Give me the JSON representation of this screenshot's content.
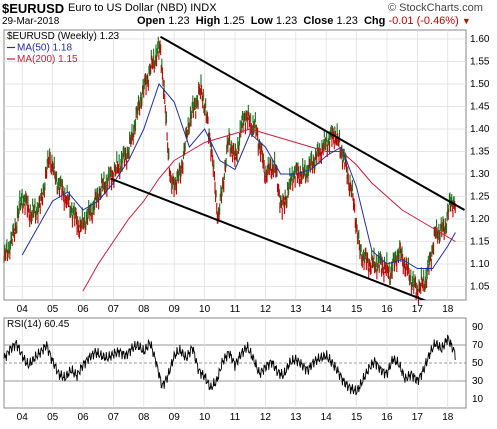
{
  "header": {
    "symbol": "$EURUSD",
    "description": "Euro to US Dollar (NBD) INDX",
    "brand": "© StockCharts.com",
    "date": "29-Mar-2018",
    "open_label": "Open",
    "open": "1.23",
    "high_label": "High",
    "high": "1.25",
    "low_label": "Low",
    "low": "1.23",
    "close_label": "Close",
    "close": "1.23",
    "chg_label": "Chg",
    "chg": "-0.01 (-0.46%)",
    "chg_icon": "triangle-down-icon"
  },
  "colors": {
    "price": "#1a6e1a",
    "price_down": "#c00000",
    "ma50": "#1f2fa0",
    "ma200": "#c0203a",
    "rsi": "#000000",
    "grid": "#dcdcdc"
  },
  "chart_data": [
    {
      "type": "line",
      "title": "",
      "legend": [
        {
          "label": "$EURUSD (Weekly) 1.23",
          "color": "#000000"
        },
        {
          "label": "MA(50) 1.18",
          "color": "#1f2fa0"
        },
        {
          "label": "MA(200) 1.15",
          "color": "#c0203a"
        }
      ],
      "legend_placement": "top-left",
      "x_ticks": [
        "04",
        "05",
        "06",
        "07",
        "08",
        "09",
        "10",
        "11",
        "12",
        "13",
        "14",
        "15",
        "16",
        "17",
        "18"
      ],
      "y_ticks": [
        1.05,
        1.1,
        1.15,
        1.2,
        1.25,
        1.3,
        1.35,
        1.4,
        1.45,
        1.5,
        1.55,
        1.6
      ],
      "xlim": [
        2003.4,
        2018.6
      ],
      "ylim": [
        1.02,
        1.62
      ],
      "grid": true,
      "series": [
        {
          "name": "$EURUSD (Weekly)",
          "x": [
            2003.4,
            2003.7,
            2004.0,
            2004.3,
            2004.6,
            2004.9,
            2005.1,
            2005.5,
            2005.9,
            2006.3,
            2006.6,
            2007.0,
            2007.5,
            2007.9,
            2008.3,
            2008.55,
            2008.9,
            2009.2,
            2009.5,
            2009.9,
            2010.2,
            2010.45,
            2010.8,
            2011.0,
            2011.3,
            2011.7,
            2012.0,
            2012.3,
            2012.55,
            2012.9,
            2013.3,
            2013.7,
            2014.0,
            2014.3,
            2014.6,
            2014.9,
            2015.1,
            2015.4,
            2015.8,
            2016.1,
            2016.4,
            2016.9,
            2017.0,
            2017.3,
            2017.6,
            2017.9,
            2018.1,
            2018.25
          ],
          "values": [
            1.11,
            1.16,
            1.25,
            1.21,
            1.23,
            1.34,
            1.29,
            1.24,
            1.18,
            1.22,
            1.27,
            1.3,
            1.35,
            1.47,
            1.55,
            1.58,
            1.27,
            1.3,
            1.42,
            1.49,
            1.37,
            1.2,
            1.38,
            1.33,
            1.43,
            1.4,
            1.3,
            1.32,
            1.22,
            1.3,
            1.3,
            1.34,
            1.37,
            1.39,
            1.33,
            1.24,
            1.13,
            1.1,
            1.1,
            1.08,
            1.13,
            1.05,
            1.04,
            1.07,
            1.17,
            1.18,
            1.24,
            1.23
          ]
        },
        {
          "name": "MA(50)",
          "x": [
            2004.0,
            2004.5,
            2005.0,
            2005.5,
            2006.0,
            2006.5,
            2007.0,
            2007.5,
            2008.0,
            2008.5,
            2009.0,
            2009.5,
            2010.0,
            2010.5,
            2011.0,
            2011.5,
            2012.0,
            2012.5,
            2013.0,
            2013.5,
            2014.0,
            2014.5,
            2015.0,
            2015.5,
            2016.0,
            2016.5,
            2017.0,
            2017.5,
            2018.0,
            2018.25
          ],
          "values": [
            1.12,
            1.18,
            1.24,
            1.26,
            1.22,
            1.24,
            1.28,
            1.33,
            1.4,
            1.5,
            1.46,
            1.36,
            1.4,
            1.33,
            1.31,
            1.39,
            1.36,
            1.3,
            1.3,
            1.31,
            1.34,
            1.36,
            1.27,
            1.13,
            1.1,
            1.11,
            1.09,
            1.09,
            1.14,
            1.17
          ]
        },
        {
          "name": "MA(200)",
          "x": [
            2006.0,
            2006.5,
            2007.0,
            2007.5,
            2008.0,
            2008.5,
            2009.0,
            2009.5,
            2010.0,
            2010.5,
            2011.0,
            2011.5,
            2012.0,
            2012.5,
            2013.0,
            2013.5,
            2014.0,
            2014.5,
            2015.0,
            2015.5,
            2016.0,
            2016.5,
            2017.0,
            2017.5,
            2018.0,
            2018.25
          ],
          "values": [
            1.04,
            1.1,
            1.15,
            1.2,
            1.24,
            1.29,
            1.33,
            1.35,
            1.37,
            1.38,
            1.39,
            1.4,
            1.39,
            1.38,
            1.37,
            1.36,
            1.35,
            1.35,
            1.32,
            1.28,
            1.25,
            1.22,
            1.2,
            1.18,
            1.16,
            1.15
          ]
        },
        {
          "name": "Channel upper",
          "x": [
            2008.55,
            2018.55
          ],
          "values": [
            1.605,
            1.22
          ]
        },
        {
          "name": "Channel lower",
          "x": [
            2006.9,
            2018.55
          ],
          "values": [
            1.29,
            0.985
          ]
        }
      ]
    },
    {
      "type": "line",
      "title": "",
      "legend": [
        {
          "label": "RSI(14) 60.45",
          "color": "#000000"
        }
      ],
      "x_ticks": [
        "04",
        "05",
        "06",
        "07",
        "08",
        "09",
        "10",
        "11",
        "12",
        "13",
        "14",
        "15",
        "16",
        "17",
        "18"
      ],
      "y_ticks": [
        10,
        30,
        50,
        70,
        90
      ],
      "reference_lines": [
        30,
        50,
        70
      ],
      "xlim": [
        2003.4,
        2018.6
      ],
      "ylim": [
        0,
        100
      ],
      "series": [
        {
          "name": "RSI(14)",
          "x": [
            2003.4,
            2003.6,
            2003.8,
            2004.0,
            2004.2,
            2004.4,
            2004.6,
            2004.8,
            2005.0,
            2005.2,
            2005.4,
            2005.6,
            2005.8,
            2006.0,
            2006.2,
            2006.4,
            2006.6,
            2006.8,
            2007.0,
            2007.2,
            2007.4,
            2007.6,
            2007.8,
            2008.0,
            2008.2,
            2008.4,
            2008.6,
            2008.8,
            2009.0,
            2009.2,
            2009.4,
            2009.6,
            2009.8,
            2010.0,
            2010.2,
            2010.4,
            2010.6,
            2010.8,
            2011.0,
            2011.2,
            2011.4,
            2011.6,
            2011.8,
            2012.0,
            2012.2,
            2012.4,
            2012.6,
            2012.8,
            2013.0,
            2013.2,
            2013.4,
            2013.6,
            2013.8,
            2014.0,
            2014.2,
            2014.4,
            2014.6,
            2014.8,
            2015.0,
            2015.2,
            2015.4,
            2015.6,
            2015.8,
            2016.0,
            2016.2,
            2016.4,
            2016.6,
            2016.8,
            2017.0,
            2017.2,
            2017.4,
            2017.6,
            2017.8,
            2018.0,
            2018.25
          ],
          "values": [
            55,
            65,
            72,
            58,
            47,
            55,
            62,
            70,
            52,
            38,
            33,
            42,
            36,
            48,
            56,
            62,
            58,
            55,
            60,
            63,
            58,
            66,
            70,
            62,
            73,
            52,
            24,
            36,
            58,
            64,
            55,
            68,
            42,
            35,
            22,
            30,
            52,
            62,
            48,
            60,
            68,
            55,
            38,
            45,
            52,
            40,
            36,
            50,
            54,
            48,
            42,
            52,
            55,
            58,
            50,
            40,
            28,
            22,
            18,
            30,
            44,
            52,
            42,
            38,
            55,
            48,
            32,
            38,
            30,
            42,
            60,
            72,
            65,
            78,
            60
          ]
        }
      ]
    }
  ]
}
